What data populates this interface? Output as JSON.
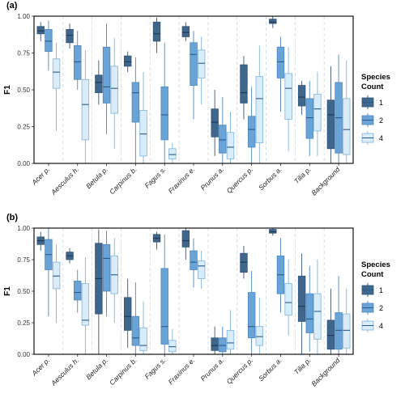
{
  "legend": {
    "title_line1": "Species",
    "title_line2": "Count",
    "entries": [
      {
        "label": "1",
        "color": "#3f678c"
      },
      {
        "label": "2",
        "color": "#6aa3d5"
      },
      {
        "label": "4",
        "color": "#d9ecf9"
      }
    ]
  },
  "chart_data": [
    {
      "type": "box",
      "panel": "(a)",
      "ylabel": "F1",
      "ylim": [
        0,
        1
      ],
      "yticks": [
        "0.00",
        "0.25",
        "0.50",
        "0.75",
        "1.00"
      ],
      "categories": [
        "Acer p.",
        "Aesculus h.",
        "Betula p.",
        "Carpinus b.",
        "Fagus s.",
        "Fraxinus e.",
        "Prunus a.",
        "Quercus p.",
        "Sorbus a.",
        "Tilia p.",
        "Background"
      ],
      "series": [
        {
          "name": "1",
          "color": "#3f678c",
          "boxes": [
            [
              0.83,
              0.88,
              0.9,
              0.93,
              0.96
            ],
            [
              0.78,
              0.82,
              0.87,
              0.91,
              0.95
            ],
            [
              0.4,
              0.48,
              0.55,
              0.6,
              0.7
            ],
            [
              0.62,
              0.66,
              0.69,
              0.73,
              0.76
            ],
            [
              0.75,
              0.83,
              0.88,
              0.96,
              0.99
            ],
            [
              0.83,
              0.86,
              0.89,
              0.93,
              0.96
            ],
            [
              0.05,
              0.18,
              0.28,
              0.37,
              0.5
            ],
            [
              0.3,
              0.41,
              0.48,
              0.67,
              0.73
            ],
            [
              0.92,
              0.95,
              0.96,
              0.98,
              1.0
            ],
            [
              0.33,
              0.39,
              0.45,
              0.53,
              0.56
            ],
            [
              0.0,
              0.1,
              0.33,
              0.43,
              0.66
            ]
          ]
        },
        {
          "name": "2",
          "color": "#6aa3d5",
          "boxes": [
            [
              0.63,
              0.76,
              0.83,
              0.91,
              0.97
            ],
            [
              0.5,
              0.57,
              0.69,
              0.8,
              0.9
            ],
            [
              0.2,
              0.41,
              0.52,
              0.79,
              0.95
            ],
            [
              0.0,
              0.28,
              0.48,
              0.55,
              0.72
            ],
            [
              0.0,
              0.16,
              0.33,
              0.52,
              0.82
            ],
            [
              0.3,
              0.53,
              0.74,
              0.82,
              0.9
            ],
            [
              0.0,
              0.07,
              0.16,
              0.26,
              0.45
            ],
            [
              0.0,
              0.11,
              0.23,
              0.32,
              0.52
            ],
            [
              0.35,
              0.58,
              0.69,
              0.79,
              0.86
            ],
            [
              0.05,
              0.17,
              0.31,
              0.44,
              0.56
            ],
            [
              0.0,
              0.07,
              0.31,
              0.55,
              0.74
            ]
          ]
        },
        {
          "name": "4",
          "color": "#d9ecf9",
          "boxes": [
            [
              0.22,
              0.51,
              0.62,
              0.71,
              0.82
            ],
            [
              0.0,
              0.16,
              0.4,
              0.57,
              0.77
            ],
            [
              0.1,
              0.34,
              0.51,
              0.66,
              0.85
            ],
            [
              0.0,
              0.05,
              0.2,
              0.36,
              0.62
            ],
            [
              0.0,
              0.03,
              0.06,
              0.1,
              0.14
            ],
            [
              0.4,
              0.58,
              0.68,
              0.77,
              0.86
            ],
            [
              0.0,
              0.03,
              0.11,
              0.21,
              0.35
            ],
            [
              0.0,
              0.14,
              0.44,
              0.59,
              0.8
            ],
            [
              0.08,
              0.3,
              0.51,
              0.61,
              0.79
            ],
            [
              0.05,
              0.22,
              0.37,
              0.47,
              0.62
            ],
            [
              0.0,
              0.06,
              0.23,
              0.44,
              0.7
            ]
          ]
        }
      ]
    },
    {
      "type": "box",
      "panel": "(b)",
      "ylabel": "F1",
      "ylim": [
        0,
        1
      ],
      "yticks": [
        "0.00",
        "0.25",
        "0.50",
        "0.75",
        "1.00"
      ],
      "categories": [
        "Acer p.",
        "Aesculus h.",
        "Betula p.",
        "Carpinus b.",
        "Fagus s.",
        "Fraxinus e.",
        "Prunus a.",
        "Quercus p.",
        "Sorbus a.",
        "Tilia p.",
        "Background"
      ],
      "series": [
        {
          "name": "1",
          "color": "#3f678c",
          "boxes": [
            [
              0.82,
              0.87,
              0.9,
              0.93,
              0.97
            ],
            [
              0.72,
              0.75,
              0.78,
              0.81,
              0.84
            ],
            [
              0.0,
              0.32,
              0.6,
              0.88,
              0.99
            ],
            [
              0.05,
              0.19,
              0.3,
              0.45,
              0.6
            ],
            [
              0.83,
              0.89,
              0.92,
              0.95,
              0.97
            ],
            [
              0.75,
              0.85,
              0.9,
              0.98,
              1.0
            ],
            [
              0.0,
              0.03,
              0.07,
              0.13,
              0.22
            ],
            [
              0.6,
              0.65,
              0.73,
              0.8,
              0.86
            ],
            [
              0.94,
              0.96,
              0.97,
              0.99,
              1.0
            ],
            [
              0.0,
              0.26,
              0.38,
              0.62,
              0.8
            ],
            [
              0.0,
              0.04,
              0.15,
              0.27,
              0.52
            ]
          ]
        },
        {
          "name": "2",
          "color": "#6aa3d5",
          "boxes": [
            [
              0.3,
              0.67,
              0.79,
              0.91,
              1.0
            ],
            [
              0.33,
              0.43,
              0.49,
              0.58,
              0.67
            ],
            [
              0.3,
              0.5,
              0.76,
              0.87,
              0.98
            ],
            [
              0.0,
              0.07,
              0.13,
              0.3,
              0.57
            ],
            [
              0.0,
              0.08,
              0.22,
              0.68,
              0.95
            ],
            [
              0.53,
              0.67,
              0.73,
              0.82,
              0.92
            ],
            [
              0.0,
              0.02,
              0.07,
              0.13,
              0.22
            ],
            [
              0.0,
              0.13,
              0.22,
              0.49,
              0.66
            ],
            [
              0.33,
              0.48,
              0.63,
              0.78,
              0.92
            ],
            [
              0.02,
              0.17,
              0.28,
              0.48,
              0.7
            ],
            [
              0.0,
              0.04,
              0.19,
              0.33,
              0.62
            ]
          ]
        },
        {
          "name": "4",
          "color": "#d9ecf9",
          "boxes": [
            [
              0.25,
              0.52,
              0.62,
              0.73,
              0.87
            ],
            [
              0.0,
              0.23,
              0.27,
              0.56,
              0.77
            ],
            [
              0.25,
              0.48,
              0.63,
              0.78,
              0.92
            ],
            [
              0.0,
              0.03,
              0.07,
              0.21,
              0.42
            ],
            [
              0.0,
              0.02,
              0.06,
              0.11,
              0.2
            ],
            [
              0.52,
              0.6,
              0.7,
              0.74,
              0.82
            ],
            [
              0.0,
              0.04,
              0.09,
              0.19,
              0.35
            ],
            [
              0.0,
              0.07,
              0.14,
              0.22,
              0.45
            ],
            [
              0.15,
              0.31,
              0.41,
              0.56,
              0.75
            ],
            [
              0.0,
              0.12,
              0.34,
              0.48,
              0.75
            ],
            [
              0.0,
              0.05,
              0.19,
              0.32,
              0.52
            ]
          ]
        }
      ]
    }
  ]
}
